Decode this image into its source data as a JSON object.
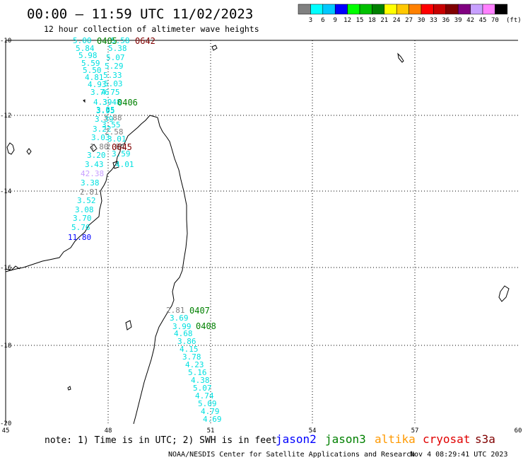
{
  "header": {
    "title": "00:00 – 11:59 UTC 11/02/2023",
    "subtitle": "12 hour collection of altimeter wave heights"
  },
  "colorbar": {
    "unit": "(ft)",
    "colors": [
      "#808080",
      "#00ffff",
      "#00c8ff",
      "#0000ff",
      "#00ff00",
      "#00c000",
      "#008000",
      "#ffff00",
      "#ffc800",
      "#ff8000",
      "#ff0000",
      "#c80000",
      "#800000",
      "#800080",
      "#c8a0ff",
      "#ff80ff",
      "#000000"
    ],
    "ticks": [
      "3",
      "6",
      "9",
      "12",
      "15",
      "18",
      "21",
      "24",
      "27",
      "30",
      "33",
      "36",
      "39",
      "42",
      "45",
      "70"
    ]
  },
  "axes": {
    "lon_labels": [
      "45",
      "48",
      "51",
      "54",
      "57",
      "60"
    ],
    "lat_labels": [
      "-10",
      "-12",
      "-14",
      "-16",
      "-18",
      "-20"
    ]
  },
  "passes": [
    {
      "label": "0405",
      "color": "#008000"
    },
    {
      "label": "0642",
      "color": "#800000"
    },
    {
      "label": "0406",
      "color": "#008000"
    },
    {
      "label": "0645",
      "color": "#800000"
    },
    {
      "label": "0407",
      "color": "#008000"
    },
    {
      "label": "0408",
      "color": "#008000"
    }
  ],
  "wave_values": [
    {
      "v": "5.00",
      "c": "#00e0e0"
    },
    {
      "v": "5.58",
      "c": "#00e0e0"
    },
    {
      "v": "5.84",
      "c": "#00e0e0"
    },
    {
      "v": "5.38",
      "c": "#00e0e0"
    },
    {
      "v": "5.98",
      "c": "#00e0e0"
    },
    {
      "v": "5.07",
      "c": "#00e0e0"
    },
    {
      "v": "5.59",
      "c": "#00e0e0"
    },
    {
      "v": "5.29",
      "c": "#00e0e0"
    },
    {
      "v": "5.50",
      "c": "#00e0e0"
    },
    {
      "v": "5.33",
      "c": "#00e0e0"
    },
    {
      "v": "4.81",
      "c": "#00e0e0"
    },
    {
      "v": "4.93",
      "c": "#00e0e0"
    },
    {
      "v": "5.03",
      "c": "#00e0e0"
    },
    {
      "v": "3.76",
      "c": "#00e0e0"
    },
    {
      "v": "4.75",
      "c": "#00e0e0"
    },
    {
      "v": "4.39",
      "c": "#00e0e0"
    },
    {
      "v": "3.48",
      "c": "#00e0e0"
    },
    {
      "v": "3.85",
      "c": "#00e0e0"
    },
    {
      "v": "3.95",
      "c": "#00e0e0"
    },
    {
      "v": "3.88",
      "c": "#808080"
    },
    {
      "v": "3.39",
      "c": "#00e0e0"
    },
    {
      "v": "3.55",
      "c": "#00e0e0"
    },
    {
      "v": "3.22",
      "c": "#00e0e0"
    },
    {
      "v": "2.58",
      "c": "#808080"
    },
    {
      "v": "3.03",
      "c": "#00e0e0"
    },
    {
      "v": "3.01",
      "c": "#00e0e0"
    },
    {
      "v": "1.80",
      "c": "#808080"
    },
    {
      "v": "2.84",
      "c": "#808080"
    },
    {
      "v": "3.20",
      "c": "#00e0e0"
    },
    {
      "v": "3.59",
      "c": "#00e0e0"
    },
    {
      "v": "3.43",
      "c": "#00e0e0"
    },
    {
      "v": "4.01",
      "c": "#00e0e0"
    },
    {
      "v": "42.38",
      "c": "#c8a0ff"
    },
    {
      "v": "3.38",
      "c": "#00e0e0"
    },
    {
      "v": "2.81",
      "c": "#808080"
    },
    {
      "v": "3.52",
      "c": "#00e0e0"
    },
    {
      "v": "3.08",
      "c": "#00e0e0"
    },
    {
      "v": "3.70",
      "c": "#00e0e0"
    },
    {
      "v": "5.76",
      "c": "#00e0e0"
    },
    {
      "v": "11.80",
      "c": "#0000ff"
    },
    {
      "v": "2.81",
      "c": "#808080"
    },
    {
      "v": "3.69",
      "c": "#00e0e0"
    },
    {
      "v": "3.99",
      "c": "#00e0e0"
    },
    {
      "v": "4.68",
      "c": "#00e0e0"
    },
    {
      "v": "3.86",
      "c": "#00e0e0"
    },
    {
      "v": "4.15",
      "c": "#00e0e0"
    },
    {
      "v": "3.78",
      "c": "#00e0e0"
    },
    {
      "v": "4.23",
      "c": "#00e0e0"
    },
    {
      "v": "5.16",
      "c": "#00e0e0"
    },
    {
      "v": "4.38",
      "c": "#00e0e0"
    },
    {
      "v": "5.07",
      "c": "#00e0e0"
    },
    {
      "v": "4.74",
      "c": "#00e0e0"
    },
    {
      "v": "5.09",
      "c": "#00e0e0"
    },
    {
      "v": "4.79",
      "c": "#00e0e0"
    },
    {
      "v": "4.69",
      "c": "#00e0e0"
    }
  ],
  "footer": {
    "note": "note: 1) Time is in UTC; 2) SWH is in feet",
    "satellites": [
      {
        "name": "jason2",
        "color": "#0000ff"
      },
      {
        "name": "jason3",
        "color": "#008000"
      },
      {
        "name": "altika",
        "color": "#ff9900"
      },
      {
        "name": "cryosat",
        "color": "#e00000"
      },
      {
        "name": "s3a",
        "color": "#800000"
      }
    ],
    "credit": "NOAA/NESDIS Center for Satellite Applications and Research",
    "timestamp": "Nov  4 08:29:41 UTC 2023"
  }
}
